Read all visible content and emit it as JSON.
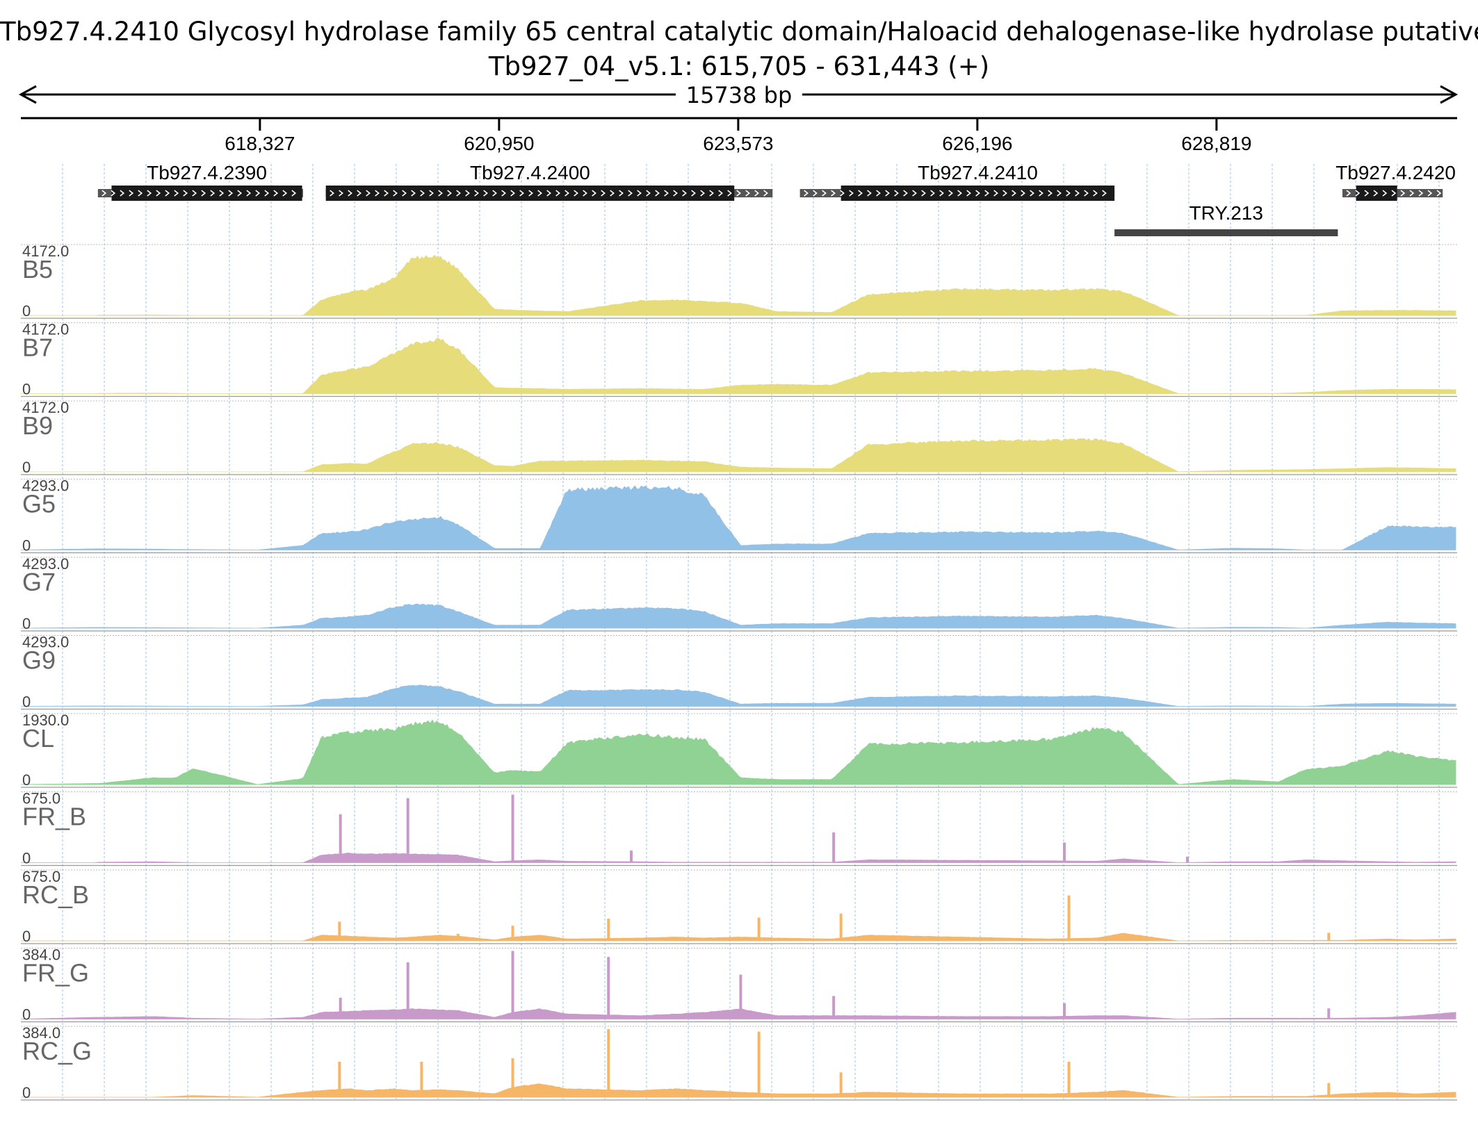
{
  "header": {
    "title": "Tb927.4.2410  Glycosyl hydrolase family 65 central catalytic domain/Haloacid dehalogenase-like hydrolase  putative",
    "locus": "Tb927_04_v5.1: 615,705 - 631,443 (+)",
    "span_label": "15738 bp"
  },
  "chart_data": {
    "type": "area",
    "title": "Tb927.4.2410  Glycosyl hydrolase family 65 central catalytic domain/Haloacid dehalogenase-like hydrolase  putative",
    "region": {
      "chrom": "Tb927_04_v5.1",
      "start": 615705,
      "end": 631443,
      "strand": "+"
    },
    "span_bp": 15738,
    "ticks": [
      618327,
      620950,
      623573,
      626196,
      628819
    ],
    "tick_labels": [
      "618,327",
      "620,950",
      "623,573",
      "626,196",
      "628,819"
    ],
    "grid": true,
    "genes": [
      {
        "name": "Tb927.4.2390",
        "start": 616550,
        "end": 618800,
        "cds_start": 616700,
        "cds_end": 618790,
        "strand": "+"
      },
      {
        "name": "Tb927.4.2400",
        "start": 619050,
        "end": 623950,
        "cds_start": 619050,
        "cds_end": 623530,
        "strand": "+"
      },
      {
        "name": "Tb927.4.2410",
        "start": 624250,
        "end": 627700,
        "cds_start": 624700,
        "cds_end": 627700,
        "strand": "+"
      },
      {
        "name": "Tb927.4.2420",
        "start": 630200,
        "end": 631300,
        "cds_start": 630350,
        "cds_end": 630800,
        "strand": "+"
      }
    ],
    "features": [
      {
        "name": "TRY.213",
        "start": 627700,
        "end": 630150
      }
    ],
    "x_breaks": [
      615705,
      616520,
      616560,
      617150,
      617400,
      617600,
      618300,
      618800,
      619000,
      619300,
      619500,
      619800,
      620000,
      620300,
      620500,
      620900,
      621100,
      621400,
      621700,
      622500,
      622900,
      623200,
      623600,
      624000,
      624600,
      625000,
      626000,
      627000,
      627500,
      627800,
      628400,
      629000,
      629500,
      629800,
      630200,
      630700,
      631000,
      631443
    ],
    "tracks": [
      {
        "name": "B5",
        "max": 4172.0,
        "max_label": "4172.0",
        "color": "#e6dc7a",
        "kind": "coverage",
        "values": [
          0,
          0,
          20,
          35,
          20,
          0,
          0,
          0,
          1000,
          1500,
          1650,
          2400,
          3700,
          3800,
          3000,
          400,
          350,
          300,
          250,
          950,
          1000,
          900,
          800,
          250,
          200,
          1350,
          1700,
          1650,
          1700,
          1550,
          0,
          10,
          5,
          10,
          300,
          330,
          330,
          300
        ]
      },
      {
        "name": "B7",
        "max": 4172.0,
        "max_label": "4172.0",
        "color": "#e6dc7a",
        "kind": "coverage",
        "values": [
          0,
          0,
          20,
          35,
          20,
          0,
          0,
          0,
          1200,
          1550,
          1700,
          2600,
          3200,
          3500,
          2900,
          400,
          350,
          330,
          280,
          330,
          300,
          280,
          550,
          600,
          550,
          1350,
          1450,
          1500,
          1600,
          1300,
          0,
          10,
          20,
          80,
          200,
          280,
          280,
          260
        ]
      },
      {
        "name": "B9",
        "max": 4172.0,
        "max_label": "4172.0",
        "color": "#e6dc7a",
        "kind": "coverage",
        "values": [
          0,
          0,
          0,
          0,
          0,
          0,
          0,
          0,
          450,
          550,
          500,
          1300,
          1800,
          1850,
          1600,
          400,
          350,
          700,
          700,
          750,
          700,
          650,
          300,
          250,
          200,
          1750,
          2000,
          2050,
          2100,
          1800,
          0,
          100,
          120,
          150,
          200,
          280,
          250,
          200
        ]
      },
      {
        "name": "G5",
        "max": 4293.0,
        "max_label": "4293.0",
        "color": "#92c1e8",
        "kind": "coverage",
        "values": [
          0,
          80,
          80,
          60,
          40,
          30,
          0,
          300,
          1100,
          1200,
          1350,
          1900,
          2000,
          2200,
          1700,
          100,
          100,
          100,
          4000,
          4150,
          4100,
          3600,
          300,
          400,
          400,
          1100,
          1200,
          1150,
          1250,
          1100,
          0,
          120,
          80,
          0,
          0,
          1600,
          1550,
          1500
        ]
      },
      {
        "name": "G7",
        "max": 4293.0,
        "max_label": "4293.0",
        "color": "#92c1e8",
        "kind": "coverage",
        "values": [
          0,
          50,
          50,
          40,
          30,
          20,
          0,
          200,
          650,
          750,
          850,
          1400,
          1600,
          1500,
          1100,
          200,
          200,
          200,
          1200,
          1350,
          1300,
          1100,
          200,
          300,
          300,
          700,
          800,
          750,
          850,
          650,
          0,
          60,
          50,
          0,
          200,
          400,
          350,
          300
        ]
      },
      {
        "name": "G9",
        "max": 4293.0,
        "max_label": "4293.0",
        "color": "#92c1e8",
        "kind": "coverage",
        "values": [
          0,
          30,
          30,
          20,
          10,
          5,
          0,
          100,
          450,
          550,
          600,
          1200,
          1400,
          1300,
          1000,
          150,
          150,
          150,
          1050,
          1100,
          1100,
          950,
          150,
          200,
          200,
          600,
          700,
          650,
          700,
          550,
          0,
          30,
          20,
          0,
          150,
          200,
          180,
          150
        ]
      },
      {
        "name": "CL",
        "max": 1930.0,
        "max_label": "1930.0",
        "color": "#8fd293",
        "kind": "coverage",
        "values": [
          0,
          30,
          30,
          200,
          200,
          480,
          0,
          180,
          1400,
          1550,
          1600,
          1650,
          1800,
          1900,
          1550,
          350,
          420,
          380,
          1250,
          1500,
          1400,
          1350,
          200,
          150,
          150,
          1200,
          1250,
          1350,
          1700,
          1550,
          0,
          150,
          80,
          450,
          550,
          1000,
          850,
          700
        ]
      },
      {
        "name": "FR_B",
        "max": 675.0,
        "max_label": "675.0",
        "color": "#c79ac9",
        "kind": "reads",
        "values": [
          0,
          0,
          5,
          10,
          5,
          0,
          0,
          0,
          80,
          100,
          90,
          95,
          90,
          85,
          80,
          10,
          20,
          30,
          15,
          10,
          5,
          5,
          5,
          5,
          5,
          30,
          25,
          20,
          15,
          40,
          0,
          10,
          10,
          30,
          20,
          10,
          5,
          10
        ],
        "spikes": [
          [
            619210,
            480
          ],
          [
            619950,
            640
          ],
          [
            621100,
            675
          ],
          [
            622400,
            120
          ],
          [
            624620,
            300
          ],
          [
            627150,
            200
          ],
          [
            628500,
            60
          ]
        ]
      },
      {
        "name": "RC_B",
        "max": 675.0,
        "max_label": "675.0",
        "color": "#f5b668",
        "kind": "reads",
        "values": [
          0,
          0,
          0,
          0,
          0,
          0,
          0,
          0,
          60,
          50,
          40,
          30,
          40,
          60,
          50,
          10,
          40,
          60,
          20,
          30,
          40,
          30,
          40,
          30,
          20,
          60,
          40,
          20,
          30,
          80,
          0,
          5,
          5,
          5,
          5,
          20,
          10,
          20
        ],
        "spikes": [
          [
            619200,
            190
          ],
          [
            620500,
            70
          ],
          [
            621100,
            150
          ],
          [
            622150,
            220
          ],
          [
            623800,
            230
          ],
          [
            624700,
            270
          ],
          [
            627200,
            450
          ],
          [
            630050,
            80
          ]
        ]
      },
      {
        "name": "FR_G",
        "max": 384.0,
        "max_label": "384.0",
        "color": "#c79ac9",
        "kind": "reads",
        "values": [
          0,
          10,
          10,
          15,
          10,
          5,
          0,
          10,
          40,
          45,
          50,
          55,
          60,
          55,
          50,
          10,
          40,
          60,
          30,
          20,
          30,
          40,
          60,
          20,
          20,
          20,
          15,
          15,
          20,
          20,
          0,
          5,
          5,
          5,
          5,
          10,
          20,
          40
        ],
        "spikes": [
          [
            619210,
            120
          ],
          [
            619950,
            320
          ],
          [
            621100,
            384
          ],
          [
            622150,
            350
          ],
          [
            623600,
            250
          ],
          [
            624620,
            130
          ],
          [
            627150,
            90
          ],
          [
            630050,
            60
          ]
        ]
      },
      {
        "name": "RC_G",
        "max": 384.0,
        "max_label": "384.0",
        "color": "#f5b668",
        "kind": "reads",
        "values": [
          0,
          0,
          0,
          0,
          5,
          10,
          0,
          30,
          40,
          50,
          40,
          50,
          40,
          45,
          40,
          20,
          60,
          80,
          50,
          40,
          50,
          40,
          30,
          20,
          20,
          30,
          20,
          20,
          30,
          40,
          0,
          5,
          5,
          5,
          20,
          30,
          20,
          30
        ],
        "spikes": [
          [
            619200,
            200
          ],
          [
            620100,
            200
          ],
          [
            621100,
            220
          ],
          [
            622150,
            384
          ],
          [
            623800,
            370
          ],
          [
            624700,
            140
          ],
          [
            627200,
            200
          ],
          [
            630050,
            80
          ]
        ]
      }
    ]
  }
}
